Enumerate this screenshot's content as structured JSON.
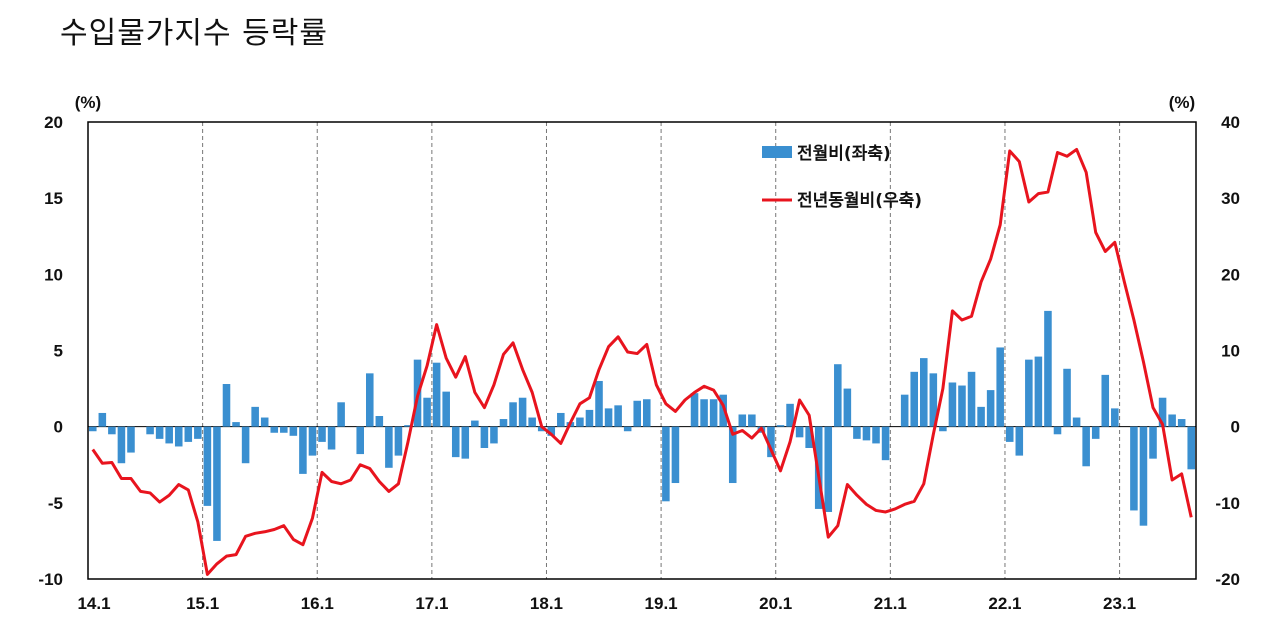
{
  "chart_data": {
    "type": "bar+line",
    "title": "수입물가지수 등락률",
    "left_axis": {
      "unit": "(%)",
      "ylim": [
        -10,
        20
      ],
      "ticks": [
        "20",
        "15",
        "10",
        "5",
        "0",
        "-5",
        "-10"
      ]
    },
    "right_axis": {
      "unit": "(%)",
      "ylim": [
        -20,
        40
      ],
      "ticks": [
        "40",
        "30",
        "20",
        "10",
        "0",
        "-10",
        "-20"
      ]
    },
    "x_tick_labels": [
      "14.1",
      "15.1",
      "16.1",
      "17.1",
      "18.1",
      "19.1",
      "20.1",
      "21.1",
      "22.1",
      "23.1"
    ],
    "x_start": "2014-01",
    "x_end": "2023-07",
    "legend": [
      "전월비(좌축)",
      "전년동월비(우축)"
    ],
    "colors": {
      "bar": "#3a8fd0",
      "line": "#e8141e"
    },
    "series": [
      {
        "name": "전월비(좌축)",
        "axis": "left",
        "type": "bar",
        "values": [
          -0.3,
          0.9,
          -0.5,
          -2.4,
          -1.7,
          0,
          -0.5,
          -0.8,
          -1.1,
          -1.3,
          -1.0,
          -0.8,
          -5.2,
          -7.5,
          2.8,
          0.3,
          -2.4,
          1.3,
          0.6,
          -0.4,
          -0.4,
          -0.6,
          -3.1,
          -1.9,
          -1.0,
          -1.5,
          1.6,
          0,
          -1.8,
          3.5,
          0.7,
          -2.7,
          -1.9,
          0.1,
          4.4,
          1.9,
          4.2,
          2.3,
          -2.0,
          -2.1,
          0.4,
          -1.4,
          -1.1,
          0.5,
          1.6,
          1.9,
          0.6,
          -0.3,
          -0.6,
          0.9,
          0.3,
          0.6,
          1.1,
          3.0,
          1.2,
          1.4,
          -0.3,
          1.7,
          1.8,
          0,
          -4.9,
          -3.7,
          0,
          2.2,
          1.8,
          1.8,
          2.1,
          -3.7,
          0.8,
          0.8,
          -0.4,
          -2.0,
          0.1,
          1.5,
          -0.7,
          -1.4,
          -5.4,
          -5.6,
          4.1,
          2.5,
          -0.8,
          -0.9,
          -1.1,
          -2.2,
          0,
          2.1,
          3.6,
          4.5,
          3.5,
          -0.3,
          2.9,
          2.7,
          3.6,
          1.3,
          2.4,
          5.2,
          -1.0,
          -1.9,
          4.4,
          4.6,
          7.6,
          -0.5,
          3.8,
          0.6,
          -2.6,
          -0.8,
          3.4,
          1.2,
          0,
          -5.5,
          -6.5,
          -2.1,
          1.9,
          0.8,
          0.5,
          -2.8
        ]
      },
      {
        "name": "전년동월비(우축)",
        "axis": "right",
        "type": "line",
        "values": [
          -3,
          -4.8,
          -4.7,
          -6.8,
          -6.8,
          -8.5,
          -8.7,
          -9.9,
          -9,
          -7.6,
          -8.3,
          -12.5,
          -19.4,
          -18,
          -17,
          -16.8,
          -14.4,
          -14,
          -13.8,
          -13.5,
          -13,
          -14.8,
          -15.5,
          -12,
          -6,
          -7.2,
          -7.5,
          -7,
          -5,
          -5.5,
          -7.2,
          -8.5,
          -7.5,
          -2,
          4,
          8,
          13.4,
          9,
          6.5,
          9.2,
          4.5,
          2.5,
          5.5,
          9.5,
          11,
          7.5,
          4.5,
          0,
          -1,
          -2.2,
          0.5,
          3,
          3.8,
          7.5,
          10.5,
          11.8,
          9.8,
          9.6,
          10.8,
          5.5,
          3,
          2,
          3.5,
          4.5,
          5.3,
          4.8,
          2.8,
          -1,
          -0.5,
          -1.5,
          -0.2,
          -3,
          -5.8,
          -2,
          3.5,
          1.5,
          -6.5,
          -14.5,
          -13,
          -7.6,
          -9,
          -10.2,
          -11,
          -11.2,
          -10.8,
          -10.2,
          -9.8,
          -7.5,
          -1,
          5,
          15.2,
          14,
          14.5,
          19,
          22,
          26.5,
          36.2,
          34.8,
          29.5,
          30.6,
          30.8,
          36,
          35.5,
          36.4,
          33.4,
          25.5,
          23,
          24.2,
          19,
          14,
          8.5,
          2.5,
          0.3,
          -7,
          -6.2,
          -11.9
        ]
      }
    ]
  }
}
